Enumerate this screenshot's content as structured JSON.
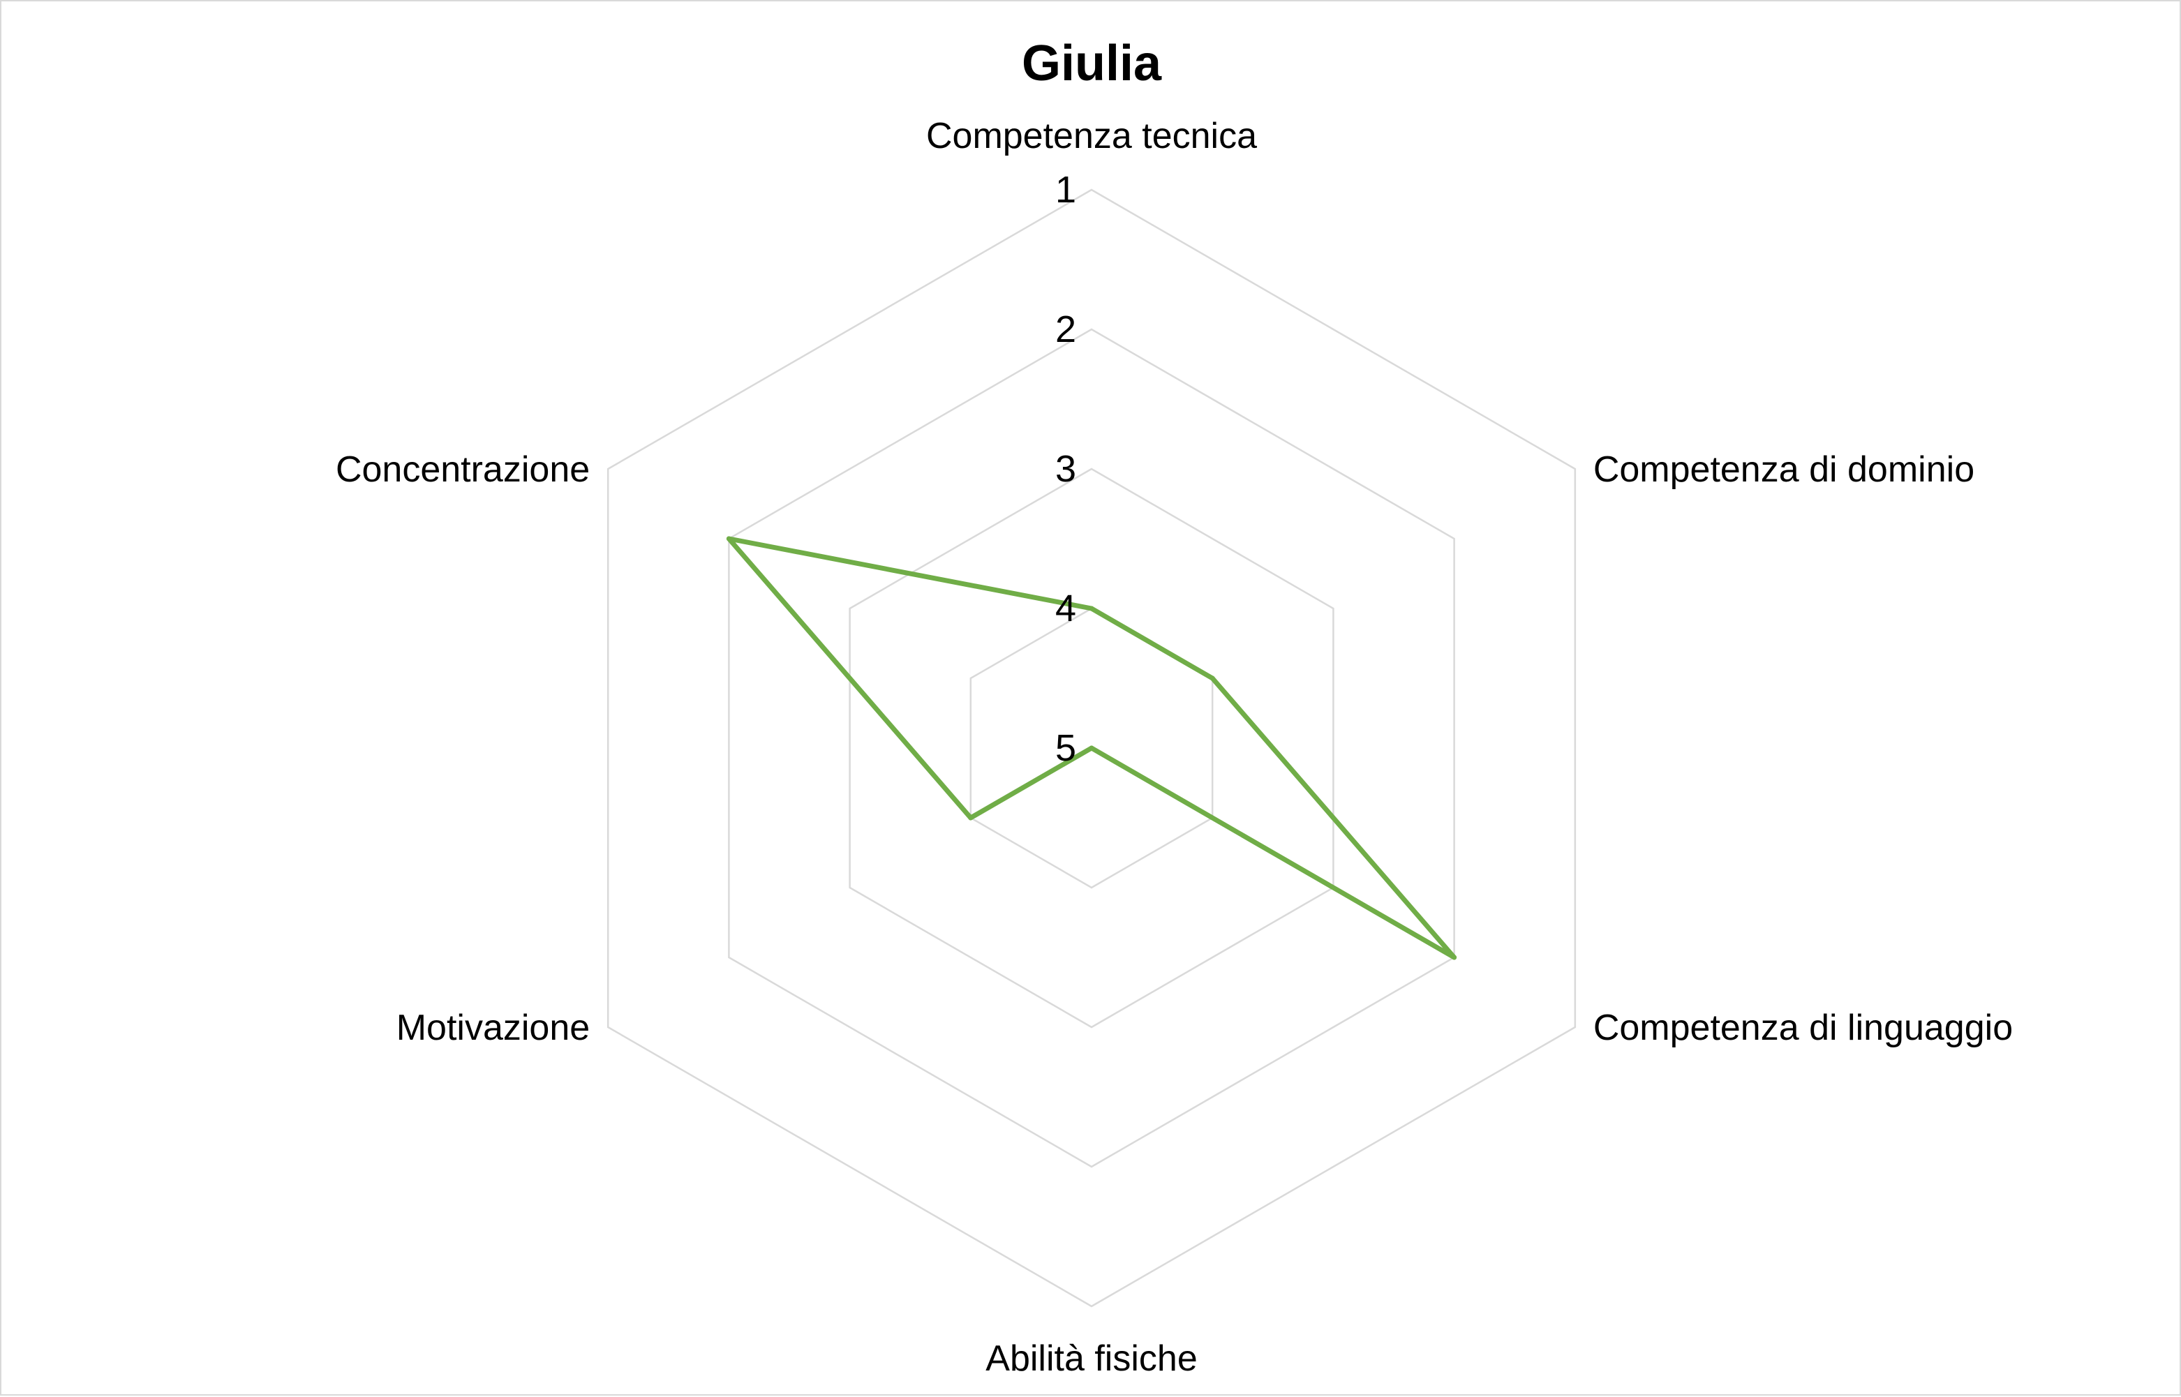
{
  "chart_data": {
    "type": "radar",
    "title": "Giulia",
    "categories": [
      "Competenza tecnica",
      "Competenza di dominio",
      "Competenza di linguaggio",
      "Abilità fisiche",
      "Motivazione",
      "Concentrazione"
    ],
    "series": [
      {
        "values": [
          4,
          4,
          2,
          5,
          4,
          2
        ]
      }
    ],
    "radial_axis": {
      "ticks": [
        1,
        2,
        3,
        4,
        5
      ],
      "tick_labels": [
        "1",
        "2",
        "3",
        "4",
        "5"
      ],
      "reversed": true,
      "range": [
        1,
        5
      ]
    },
    "grid": true,
    "legend": "none"
  },
  "colors": {
    "series": "#70ad47",
    "grid": "#d9d9d9",
    "text": "#000000"
  }
}
